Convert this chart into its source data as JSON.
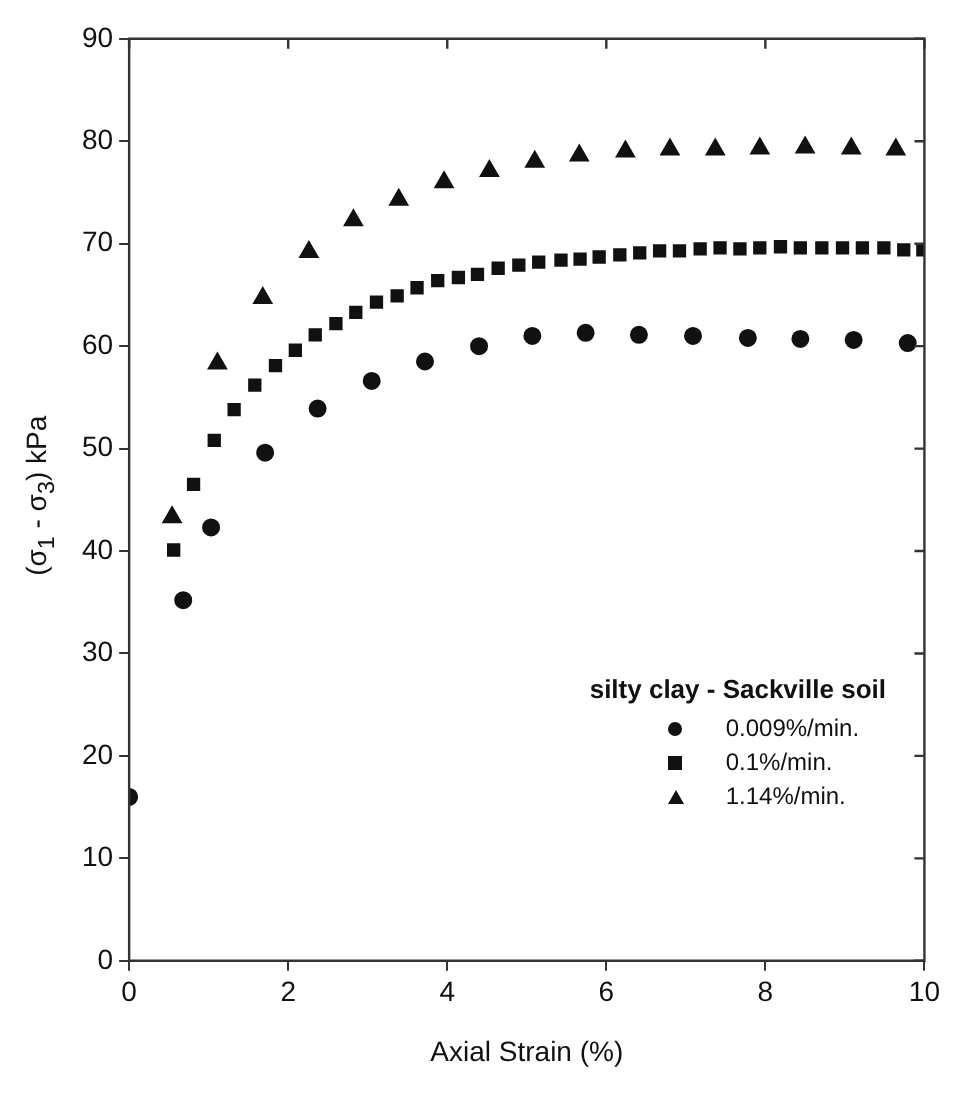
{
  "chart_data": {
    "type": "scatter",
    "xlabel": "Axial Strain (%)",
    "ylabel": "(σ$_{1}$ - σ$_{3}$) kPa",
    "legend_title": "silty clay - Sackville soil",
    "legend": "bottom right",
    "grid": false,
    "xlim": [
      0,
      10
    ],
    "xticks": [
      0,
      2,
      4,
      6,
      8,
      10
    ],
    "ylim": [
      0,
      90
    ],
    "yticks": [
      0,
      10,
      20,
      30,
      40,
      50,
      60,
      70,
      80,
      90
    ],
    "series": [
      {
        "name": "0.009%/min.",
        "color": "#111111",
        "marker": "circle",
        "x": [
          0,
          0.68,
          1.03,
          1.71,
          2.37,
          3.05,
          3.72,
          4.4,
          5.07,
          5.74,
          6.41,
          7.09,
          7.78,
          8.44,
          9.11,
          9.79
        ],
        "values": [
          16.0,
          35.2,
          42.3,
          49.6,
          53.9,
          56.6,
          58.5,
          60.0,
          61.0,
          61.3,
          61.1,
          61.0,
          60.8,
          60.7,
          60.6,
          60.3
        ]
      },
      {
        "name": "0.1%/min.",
        "color": "#111111",
        "marker": "square",
        "x": [
          0.56,
          0.81,
          1.07,
          1.32,
          1.58,
          1.84,
          2.09,
          2.34,
          2.6,
          2.85,
          3.11,
          3.37,
          3.62,
          3.88,
          4.14,
          4.38,
          4.64,
          4.9,
          5.15,
          5.43,
          5.67,
          5.91,
          6.17,
          6.42,
          6.67,
          6.92,
          7.18,
          7.43,
          7.68,
          7.93,
          8.19,
          8.44,
          8.71,
          8.97,
          9.22,
          9.49,
          9.74,
          9.98
        ],
        "values": [
          40.1,
          46.5,
          50.8,
          53.8,
          56.2,
          58.1,
          59.6,
          61.1,
          62.2,
          63.3,
          64.3,
          64.9,
          65.7,
          66.4,
          66.7,
          67.0,
          67.6,
          67.9,
          68.2,
          68.4,
          68.5,
          68.7,
          68.9,
          69.1,
          69.3,
          69.3,
          69.5,
          69.6,
          69.5,
          69.6,
          69.7,
          69.6,
          69.6,
          69.6,
          69.6,
          69.6,
          69.4,
          69.4
        ]
      },
      {
        "name": "1.14%/min.",
        "color": "#111111",
        "marker": "triangle",
        "x": [
          0.54,
          1.11,
          1.68,
          2.26,
          2.82,
          3.39,
          3.96,
          4.53,
          5.1,
          5.66,
          6.24,
          6.8,
          7.37,
          7.93,
          8.5,
          9.08,
          9.64
        ],
        "values": [
          43.3,
          58.3,
          64.7,
          69.2,
          72.3,
          74.3,
          76.0,
          77.1,
          78.0,
          78.6,
          79.0,
          79.2,
          79.2,
          79.3,
          79.4,
          79.3,
          79.2
        ]
      }
    ]
  }
}
